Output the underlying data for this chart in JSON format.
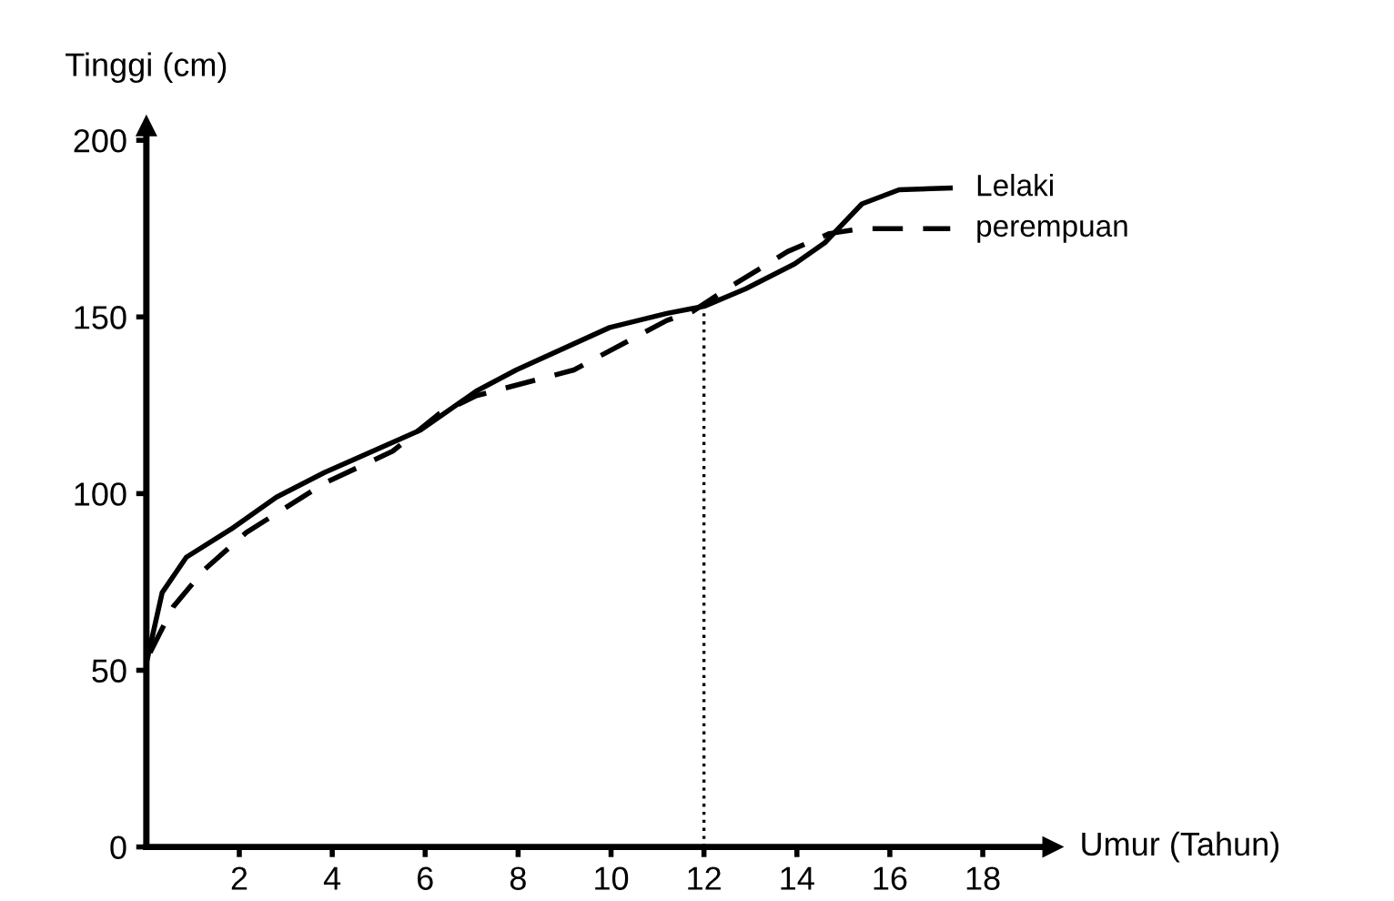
{
  "chart_data": {
    "type": "line",
    "xlabel": "Umur (Tahun)",
    "ylabel": "Tinggi (cm)",
    "xlim": [
      0,
      19.5
    ],
    "ylim": [
      0,
      204
    ],
    "xticks": [
      2,
      4,
      6,
      8,
      10,
      12,
      14,
      16,
      18
    ],
    "yticks": [
      0,
      50,
      100,
      150,
      200
    ],
    "grid": false,
    "ref_lines": [
      {
        "axis": "x",
        "value": 12,
        "line_style": "dotted",
        "color": "#000000"
      }
    ],
    "series": [
      {
        "name": "Lelaki",
        "color": "#000000",
        "line_style": "solid",
        "x": [
          0,
          0.34,
          0.86,
          1.83,
          2.8,
          3.84,
          5.9,
          7.1,
          7.96,
          9.97,
          11.2,
          12,
          12.9,
          13.95,
          14.6,
          15.4,
          16.2,
          17.3
        ],
        "values": [
          52,
          72,
          82,
          90,
          99,
          106,
          118,
          129,
          135,
          147,
          151,
          153,
          158,
          165,
          171,
          182,
          186,
          186.5
        ]
      },
      {
        "name": "perempuan",
        "color": "#000000",
        "line_style": "dashed",
        "x": [
          0.08,
          0.58,
          1.25,
          2.15,
          3.84,
          5.3,
          6.3,
          7.1,
          9.2,
          11.2,
          11.75,
          12.5,
          13.8,
          14.7,
          15.4,
          17.3
        ],
        "values": [
          55,
          68,
          78.5,
          89,
          103,
          112,
          122.6,
          127.7,
          135,
          149,
          151.5,
          158,
          168.5,
          173.6,
          175,
          175
        ]
      }
    ]
  }
}
